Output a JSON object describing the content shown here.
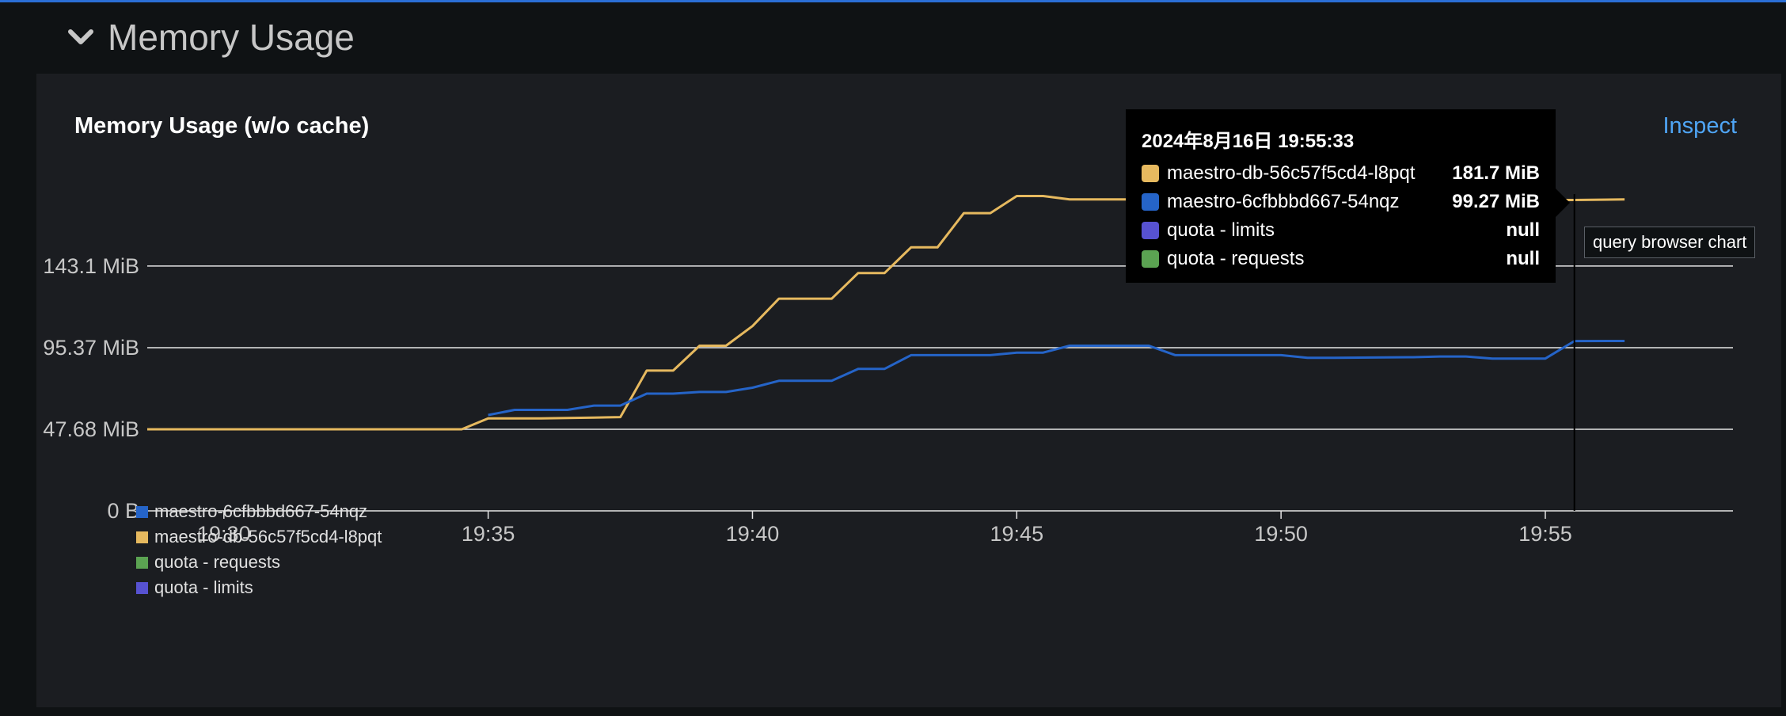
{
  "section": {
    "title": "Memory Usage",
    "icon": "chevron-down-icon"
  },
  "panel": {
    "title": "Memory Usage (w/o cache)",
    "inspect_label": "Inspect"
  },
  "tooltip": {
    "timestamp": "2024年8月16日 19:55:33",
    "rows": [
      {
        "name": "maestro-db-56c57f5cd4-l8pqt",
        "value": "181.7 MiB",
        "color": "#e6b95f"
      },
      {
        "name": "maestro-6cfbbbd667-54nqz",
        "value": "99.27 MiB",
        "color": "#2564c8"
      },
      {
        "name": "quota - limits",
        "value": "null",
        "color": "#5752d1"
      },
      {
        "name": "quota - requests",
        "value": "null",
        "color": "#5ba352"
      }
    ]
  },
  "hover_label": "query browser chart",
  "legend": [
    {
      "label": "maestro-6cfbbbd667-54nqz",
      "color": "#2564c8"
    },
    {
      "label": "maestro-db-56c57f5cd4-l8pqt",
      "color": "#e6b95f"
    },
    {
      "label": "quota - requests",
      "color": "#5ba352"
    },
    {
      "label": "quota - limits",
      "color": "#5752d1"
    }
  ],
  "chart_data": {
    "type": "line",
    "title": "Memory Usage (w/o cache)",
    "y_ticks": [
      {
        "value": 0,
        "label": "0 B"
      },
      {
        "value": 47.68,
        "label": "47.68 MiB"
      },
      {
        "value": 95.37,
        "label": "95.37 MiB"
      },
      {
        "value": 143.1,
        "label": "143.1 MiB"
      }
    ],
    "x_ticks": [
      "19:30",
      "19:35",
      "19:40",
      "19:45",
      "19:50",
      "19:55"
    ],
    "xlim": [
      "19:28:33",
      "19:58:33"
    ],
    "ylim": [
      0,
      190
    ],
    "grid": "horizontal",
    "legend_position": "bottom-left",
    "hover_time": "19:55:33",
    "series": [
      {
        "name": "maestro-db-56c57f5cd4-l8pqt",
        "color": "#e6b95f",
        "points": [
          [
            "19:28:33",
            47.7
          ],
          [
            "19:34:30",
            47.7
          ],
          [
            "19:35:00",
            54.0
          ],
          [
            "19:36:00",
            54.0
          ],
          [
            "19:37:00",
            54.5
          ],
          [
            "19:37:30",
            54.8
          ],
          [
            "19:38:00",
            82.0
          ],
          [
            "19:38:30",
            82.0
          ],
          [
            "19:39:00",
            96.5
          ],
          [
            "19:39:30",
            96.5
          ],
          [
            "19:40:00",
            108.0
          ],
          [
            "19:40:30",
            124.0
          ],
          [
            "19:41:30",
            124.0
          ],
          [
            "19:42:00",
            139.0
          ],
          [
            "19:42:30",
            139.0
          ],
          [
            "19:43:00",
            154.0
          ],
          [
            "19:43:30",
            154.0
          ],
          [
            "19:44:00",
            174.0
          ],
          [
            "19:44:30",
            174.0
          ],
          [
            "19:45:00",
            184.0
          ],
          [
            "19:45:30",
            184.0
          ],
          [
            "19:46:00",
            182.0
          ],
          [
            "19:47:30",
            182.0
          ],
          [
            "19:55:33",
            181.7
          ],
          [
            "19:56:30",
            182.0
          ]
        ]
      },
      {
        "name": "maestro-6cfbbbd667-54nqz",
        "color": "#2564c8",
        "points": [
          [
            "19:35:00",
            56.0
          ],
          [
            "19:35:30",
            59.0
          ],
          [
            "19:36:30",
            59.0
          ],
          [
            "19:37:00",
            61.5
          ],
          [
            "19:37:30",
            61.5
          ],
          [
            "19:38:00",
            68.5
          ],
          [
            "19:38:30",
            68.5
          ],
          [
            "19:39:00",
            69.5
          ],
          [
            "19:39:30",
            69.5
          ],
          [
            "19:40:00",
            72.0
          ],
          [
            "19:40:30",
            76.0
          ],
          [
            "19:41:30",
            76.0
          ],
          [
            "19:42:00",
            83.0
          ],
          [
            "19:42:30",
            83.0
          ],
          [
            "19:43:00",
            91.0
          ],
          [
            "19:44:30",
            91.0
          ],
          [
            "19:45:00",
            92.5
          ],
          [
            "19:45:30",
            92.5
          ],
          [
            "19:46:00",
            96.5
          ],
          [
            "19:47:30",
            96.5
          ],
          [
            "19:48:00",
            91.0
          ],
          [
            "19:50:00",
            91.0
          ],
          [
            "19:50:30",
            89.5
          ],
          [
            "19:51:00",
            89.5
          ],
          [
            "19:52:30",
            89.8
          ],
          [
            "19:53:00",
            90.2
          ],
          [
            "19:53:30",
            90.2
          ],
          [
            "19:54:00",
            89.0
          ],
          [
            "19:55:00",
            89.0
          ],
          [
            "19:55:33",
            99.27
          ],
          [
            "19:56:30",
            99.3
          ]
        ]
      },
      {
        "name": "quota - limits",
        "color": "#5752d1",
        "points": []
      },
      {
        "name": "quota - requests",
        "color": "#5ba352",
        "points": []
      }
    ]
  }
}
